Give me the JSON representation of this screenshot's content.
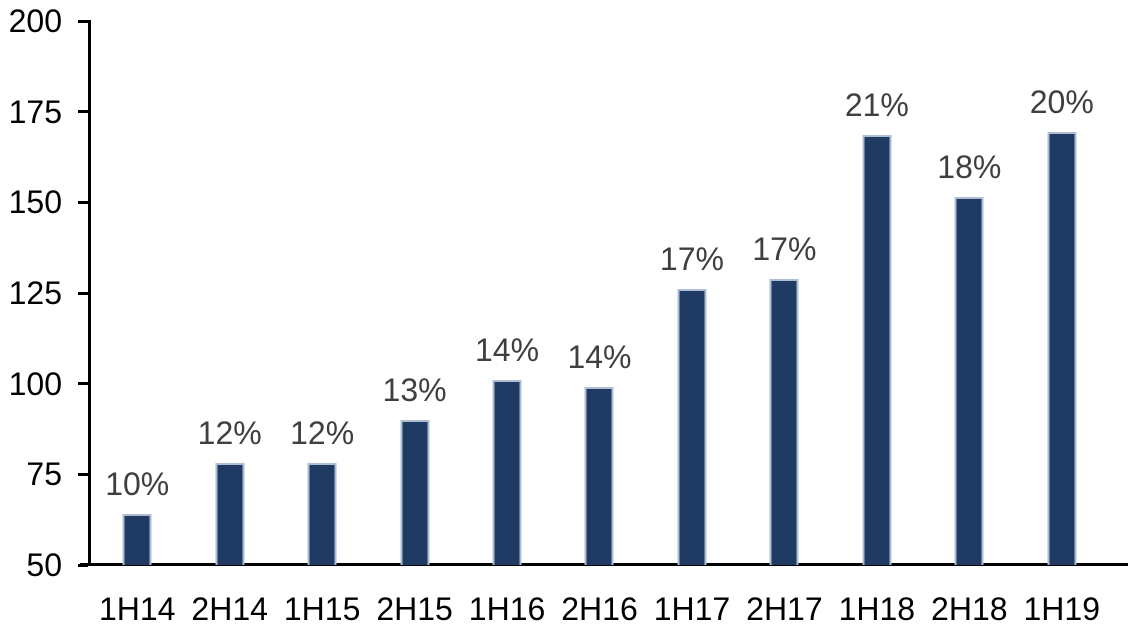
{
  "chart_data": {
    "type": "bar",
    "categories": [
      "1H14",
      "2H14",
      "1H15",
      "2H15",
      "1H16",
      "2H16",
      "1H17",
      "2H17",
      "1H18",
      "2H18",
      "1H19"
    ],
    "values": [
      64,
      78,
      78,
      90,
      101,
      99,
      126,
      129,
      168.5,
      151.5,
      169.5
    ],
    "bar_labels": [
      "10%",
      "12%",
      "12%",
      "13%",
      "14%",
      "14%",
      "17%",
      "17%",
      "21%",
      "18%",
      "20%"
    ],
    "title": "",
    "xlabel": "",
    "ylabel": "",
    "ylim": [
      50,
      200
    ],
    "y_ticks": [
      200,
      175,
      150,
      125,
      100,
      75,
      50
    ],
    "grid": false,
    "legend": false,
    "colors": {
      "bar_fill": "#1F3A63",
      "bar_border": "#AEBDD3",
      "data_label": "#3F3F3F",
      "axis_line": "#000000",
      "tick_label": "#000000",
      "background": "#FFFFFF"
    }
  }
}
